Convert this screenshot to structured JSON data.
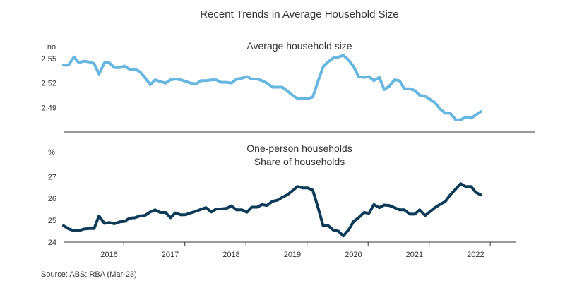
{
  "title": "Recent Trends in Average Household Size",
  "source": "Source: ABS; RBA (Mar-23)",
  "x_axis": {
    "ticks": [
      "2016",
      "2017",
      "2018",
      "2019",
      "2020",
      "2021",
      "2022"
    ],
    "range": [
      2015.5,
      2022.9
    ]
  },
  "chart_data": [
    {
      "type": "line",
      "title": "Average household size",
      "unit": "no",
      "ylim": [
        2.46,
        2.57
      ],
      "yticks": [
        "2.55",
        "2.52",
        "2.49"
      ],
      "ytick_values": [
        2.55,
        2.52,
        2.49
      ],
      "color": "#67b6e0",
      "series": [
        {
          "x": [
            2015.5,
            2015.58,
            2015.67,
            2015.75,
            2015.83,
            2015.92,
            2016.0,
            2016.08,
            2016.17,
            2016.25,
            2016.33,
            2016.42,
            2016.5,
            2016.58,
            2016.67,
            2016.75,
            2016.83,
            2016.92,
            2017.0,
            2017.08,
            2017.17,
            2017.25,
            2017.33,
            2017.42,
            2017.5,
            2017.58,
            2017.67,
            2017.75,
            2017.83,
            2017.92,
            2018.0,
            2018.08,
            2018.17,
            2018.25,
            2018.33,
            2018.42,
            2018.5,
            2018.58,
            2018.67,
            2018.75,
            2018.83,
            2018.92,
            2019.0,
            2019.08,
            2019.17,
            2019.25,
            2019.33,
            2019.42,
            2019.5,
            2019.58,
            2019.67,
            2019.75,
            2019.83,
            2019.92,
            2020.0,
            2020.08,
            2020.17,
            2020.25,
            2020.33,
            2020.42,
            2020.5,
            2020.58,
            2020.67,
            2020.75,
            2020.83,
            2020.92,
            2021.0,
            2021.08,
            2021.17,
            2021.25,
            2021.33,
            2021.42,
            2021.5,
            2021.58,
            2021.67,
            2021.75,
            2021.83,
            2021.92,
            2022.0,
            2022.08,
            2022.17,
            2022.25,
            2022.33
          ],
          "values": [
            2.542,
            2.542,
            2.552,
            2.545,
            2.547,
            2.546,
            2.544,
            2.531,
            2.545,
            2.545,
            2.539,
            2.539,
            2.541,
            2.537,
            2.537,
            2.534,
            2.527,
            2.518,
            2.524,
            2.522,
            2.52,
            2.524,
            2.525,
            2.524,
            2.522,
            2.52,
            2.519,
            2.523,
            2.523,
            2.524,
            2.524,
            2.521,
            2.521,
            2.52,
            2.525,
            2.526,
            2.528,
            2.525,
            2.525,
            2.523,
            2.52,
            2.515,
            2.515,
            2.515,
            2.51,
            2.505,
            2.501,
            2.501,
            2.501,
            2.503,
            2.523,
            2.54,
            2.546,
            2.551,
            2.552,
            2.554,
            2.548,
            2.54,
            2.528,
            2.527,
            2.528,
            2.523,
            2.527,
            2.512,
            2.516,
            2.524,
            2.523,
            2.513,
            2.513,
            2.511,
            2.505,
            2.504,
            2.5,
            2.496,
            2.488,
            2.483,
            2.483,
            2.475,
            2.475,
            2.478,
            2.477,
            2.481,
            2.485
          ]
        }
      ]
    },
    {
      "type": "line",
      "title": "One-person households",
      "subtitle": "Share of households",
      "unit": "%",
      "ylim": [
        24,
        28.4
      ],
      "yticks": [
        "27",
        "26",
        "25",
        "24"
      ],
      "ytick_values": [
        27,
        26,
        25,
        24
      ],
      "color": "#0c3a57",
      "series": [
        {
          "x": [
            2015.5,
            2015.58,
            2015.67,
            2015.75,
            2015.83,
            2015.92,
            2016.0,
            2016.08,
            2016.17,
            2016.25,
            2016.33,
            2016.42,
            2016.5,
            2016.58,
            2016.67,
            2016.75,
            2016.83,
            2016.92,
            2017.0,
            2017.08,
            2017.17,
            2017.25,
            2017.33,
            2017.42,
            2017.5,
            2017.58,
            2017.67,
            2017.75,
            2017.83,
            2017.92,
            2018.0,
            2018.08,
            2018.17,
            2018.25,
            2018.33,
            2018.42,
            2018.5,
            2018.58,
            2018.67,
            2018.75,
            2018.83,
            2018.92,
            2019.0,
            2019.08,
            2019.17,
            2019.25,
            2019.33,
            2019.42,
            2019.5,
            2019.58,
            2019.67,
            2019.75,
            2019.83,
            2019.92,
            2020.0,
            2020.08,
            2020.17,
            2020.25,
            2020.33,
            2020.42,
            2020.5,
            2020.58,
            2020.67,
            2020.75,
            2020.83,
            2020.92,
            2021.0,
            2021.08,
            2021.17,
            2021.25,
            2021.33,
            2021.42,
            2021.5,
            2021.58,
            2021.67,
            2021.75,
            2021.83,
            2021.92,
            2022.0,
            2022.08,
            2022.17,
            2022.25,
            2022.33
          ],
          "values": [
            24.75,
            24.61,
            24.52,
            24.52,
            24.6,
            24.62,
            24.62,
            25.2,
            24.86,
            24.9,
            24.84,
            24.93,
            24.95,
            25.1,
            25.12,
            25.2,
            25.22,
            25.38,
            25.48,
            25.36,
            25.36,
            25.12,
            25.34,
            25.25,
            25.26,
            25.34,
            25.42,
            25.5,
            25.58,
            25.38,
            25.52,
            25.52,
            25.55,
            25.66,
            25.48,
            25.48,
            25.37,
            25.6,
            25.6,
            25.72,
            25.68,
            25.87,
            25.92,
            26.05,
            26.18,
            26.36,
            26.55,
            26.48,
            26.48,
            26.38,
            25.55,
            24.74,
            24.76,
            24.54,
            24.5,
            24.28,
            24.58,
            24.95,
            25.12,
            25.36,
            25.32,
            25.72,
            25.58,
            25.7,
            25.68,
            25.58,
            25.48,
            25.48,
            25.28,
            25.28,
            25.48,
            25.22,
            25.4,
            25.58,
            25.74,
            25.86,
            26.16,
            26.43,
            26.68,
            26.55,
            26.55,
            26.28,
            26.16
          ]
        }
      ]
    }
  ]
}
